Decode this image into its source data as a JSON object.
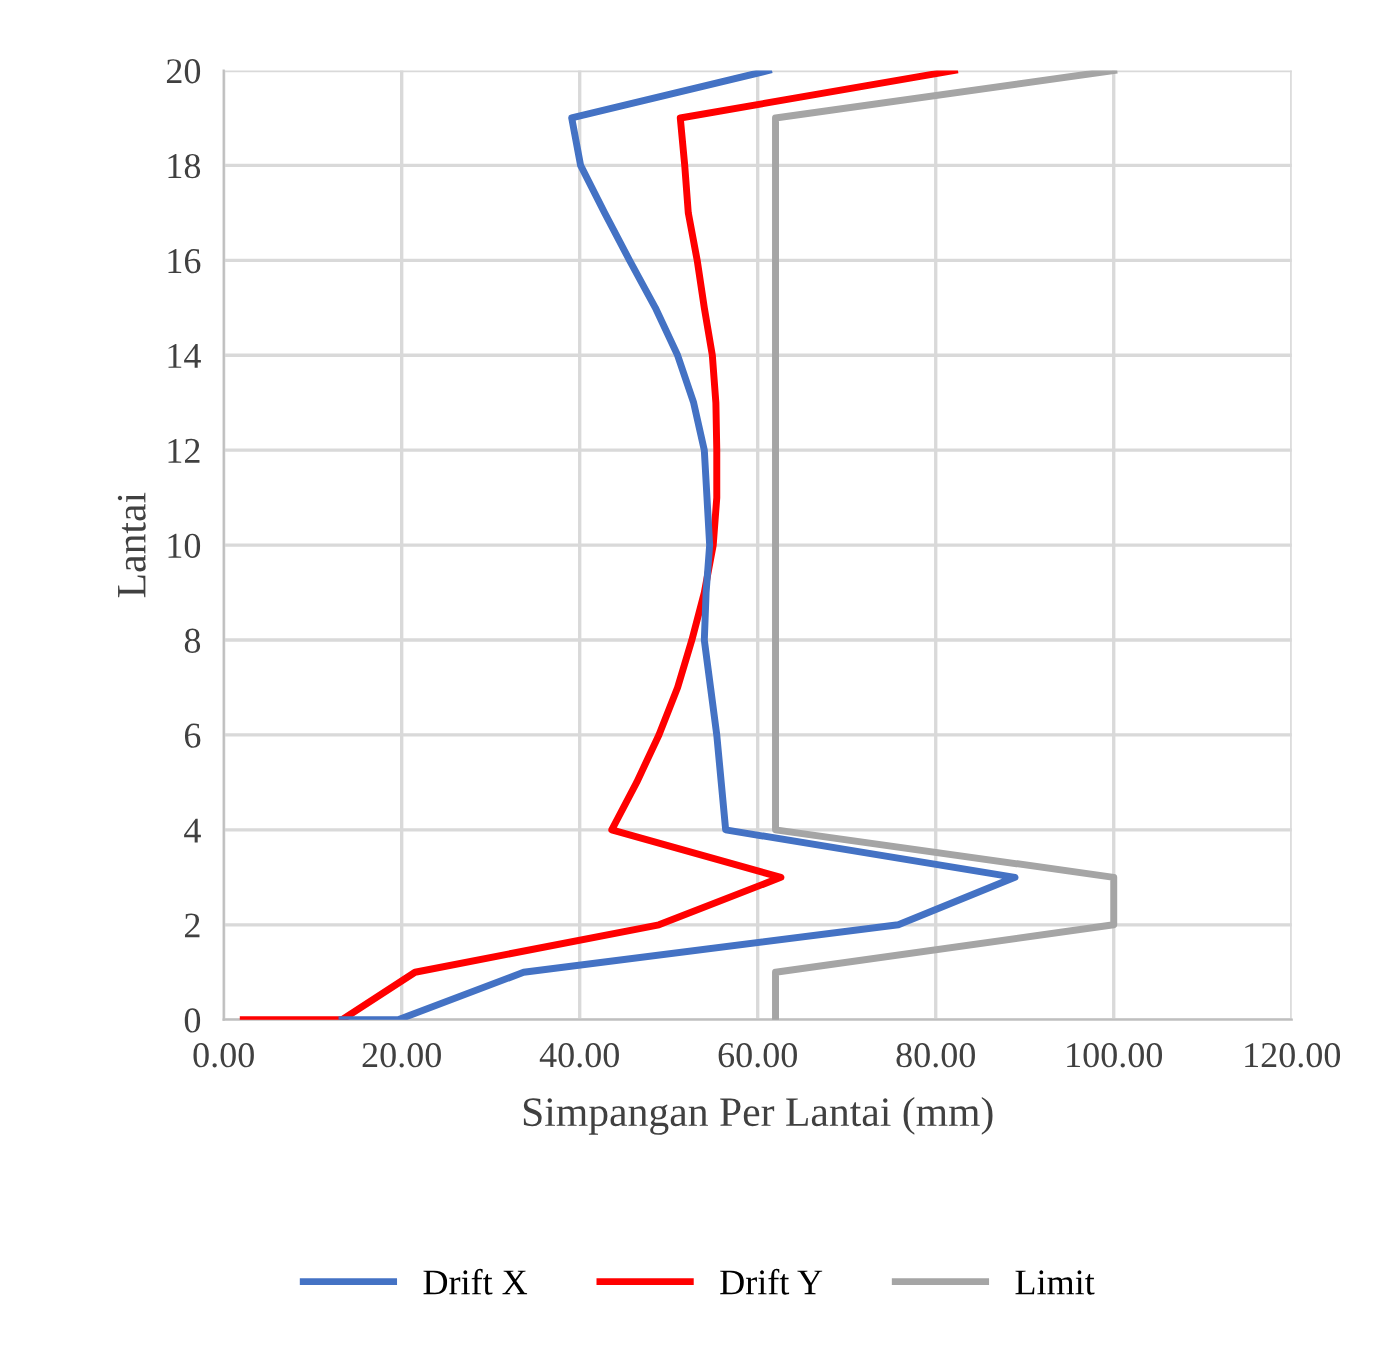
{
  "chart_data": {
    "type": "line",
    "xlabel": "Simpangan Per Lantai (mm)",
    "ylabel": "Lantai",
    "xlim": [
      0,
      120
    ],
    "xticks": [
      {
        "value": 0,
        "label": "0.00"
      },
      {
        "value": 20,
        "label": "20.00"
      },
      {
        "value": 40,
        "label": "40.00"
      },
      {
        "value": 60,
        "label": "60.00"
      },
      {
        "value": 80,
        "label": "80.00"
      },
      {
        "value": 100,
        "label": "100.00"
      },
      {
        "value": 120,
        "label": "120.00"
      }
    ],
    "ylim": [
      0,
      20
    ],
    "yticks": [
      0,
      2,
      4,
      6,
      8,
      10,
      12,
      14,
      16,
      18,
      20
    ],
    "grid": true,
    "legend": "bottom",
    "marker": "none",
    "line_style": "solid",
    "series": [
      {
        "name": "Drift X",
        "color": "#4472c4",
        "x": [
          13.3,
          19.6,
          33.7,
          75.8,
          88.9,
          56.4,
          55.9,
          55.4,
          54.7,
          54.0,
          54.2,
          54.6,
          54.3,
          54.0,
          52.8,
          51.0,
          48.5,
          45.6,
          42.8,
          40.1,
          39.1,
          61.2
        ],
        "values": [
          0,
          0,
          1,
          2,
          3,
          4,
          5,
          6,
          7,
          8,
          9,
          10,
          11,
          12,
          13,
          14,
          15,
          16,
          17,
          18,
          19,
          20
        ]
      },
      {
        "name": "Drift Y",
        "color": "#ff0000",
        "x": [
          2.2,
          13.3,
          21.5,
          48.9,
          62.6,
          43.6,
          46.4,
          48.9,
          51.0,
          52.6,
          54.0,
          55.0,
          55.4,
          55.4,
          55.3,
          54.9,
          54.0,
          53.2,
          52.2,
          51.8,
          51.3,
          82.1
        ],
        "values": [
          0,
          0,
          1,
          2,
          3,
          4,
          5,
          6,
          7,
          8,
          9,
          10,
          11,
          12,
          13,
          14,
          15,
          16,
          17,
          18,
          19,
          20
        ]
      },
      {
        "name": "Limit",
        "color": "#a5a5a5",
        "x": [
          62.0,
          62.0,
          100,
          100,
          62.0,
          62.0,
          100
        ],
        "values": [
          0,
          1,
          2,
          3,
          4,
          19,
          20
        ]
      }
    ]
  }
}
